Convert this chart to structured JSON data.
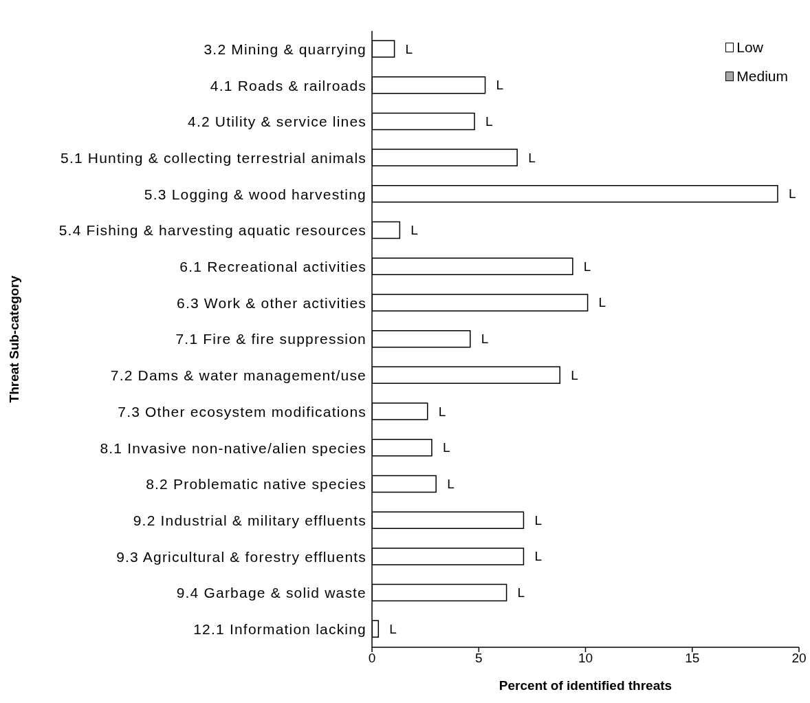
{
  "chart_data": {
    "type": "bar",
    "orientation": "horizontal",
    "xlabel": "Percent of identified threats",
    "ylabel": "Threat Sub-category",
    "categories": [
      "3.2 Mining & quarrying",
      "4.1 Roads & railroads",
      "4.2 Utility & service lines",
      "5.1 Hunting & collecting terrestrial animals",
      "5.3 Logging & wood harvesting",
      "5.4 Fishing & harvesting aquatic resources",
      "6.1 Recreational activities",
      "6.3 Work & other activities",
      "7.1 Fire & fire suppression",
      "7.2 Dams & water management/use",
      "7.3 Other ecosystem modifications",
      "8.1 Invasive non-native/alien species",
      "8.2 Problematic native species",
      "9.2 Industrial & military effluents",
      "9.3 Agricultural & forestry effluents",
      "9.4 Garbage & solid waste",
      "12.1 Information lacking"
    ],
    "series": [
      {
        "name": "Low",
        "color": "#ffffff",
        "values": [
          1.05,
          5.3,
          4.8,
          6.8,
          19.0,
          1.3,
          9.4,
          10.1,
          4.6,
          8.8,
          2.6,
          2.8,
          3.0,
          7.1,
          7.1,
          6.3,
          0.3
        ],
        "value_labels": [
          "L",
          "L",
          "L",
          "L",
          "L",
          "L",
          "L",
          "L",
          "L",
          "L",
          "L",
          "L",
          "L",
          "L",
          "L",
          "L",
          "L"
        ]
      },
      {
        "name": "Medium",
        "color": "#a6a6a6",
        "values": [
          null,
          null,
          null,
          null,
          null,
          null,
          null,
          null,
          null,
          null,
          null,
          null,
          null,
          null,
          null,
          null,
          null
        ]
      }
    ],
    "xlim": [
      0,
      20
    ],
    "xticks": [
      0,
      5,
      10,
      15,
      20
    ],
    "legend": "top right"
  }
}
